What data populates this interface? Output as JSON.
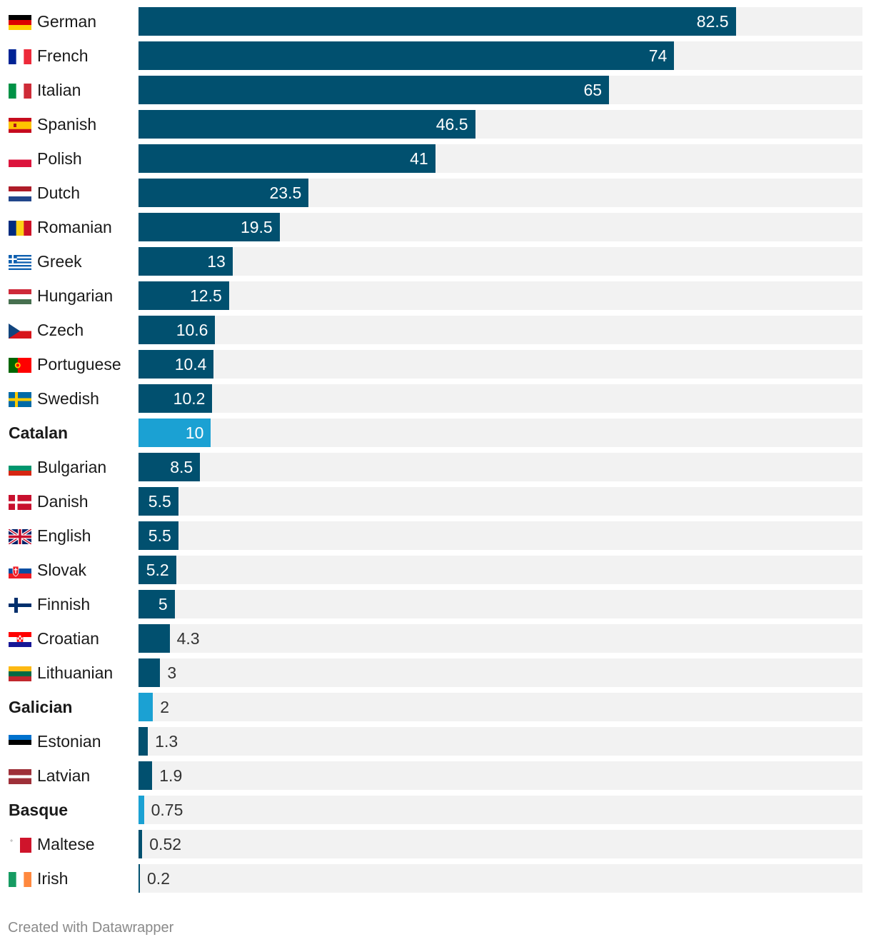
{
  "chart_data": {
    "type": "bar",
    "orientation": "horizontal",
    "xlim": [
      0,
      100
    ],
    "grid": false,
    "colors": {
      "default": "#01506f",
      "highlight": "#1ba1d3",
      "track": "#f2f2f2"
    },
    "rows": [
      {
        "label": "German",
        "value": 82.5,
        "display": "82.5",
        "flag": "de"
      },
      {
        "label": "French",
        "value": 74,
        "display": "74",
        "flag": "fr"
      },
      {
        "label": "Italian",
        "value": 65,
        "display": "65",
        "flag": "it"
      },
      {
        "label": "Spanish",
        "value": 46.5,
        "display": "46.5",
        "flag": "es"
      },
      {
        "label": "Polish",
        "value": 41,
        "display": "41",
        "flag": "pl"
      },
      {
        "label": "Dutch",
        "value": 23.5,
        "display": "23.5",
        "flag": "nl"
      },
      {
        "label": "Romanian",
        "value": 19.5,
        "display": "19.5",
        "flag": "ro"
      },
      {
        "label": "Greek",
        "value": 13,
        "display": "13",
        "flag": "gr"
      },
      {
        "label": "Hungarian",
        "value": 12.5,
        "display": "12.5",
        "flag": "hu"
      },
      {
        "label": "Czech",
        "value": 10.6,
        "display": "10.6",
        "flag": "cz"
      },
      {
        "label": "Portuguese",
        "value": 10.4,
        "display": "10.4",
        "flag": "pt"
      },
      {
        "label": "Swedish",
        "value": 10.2,
        "display": "10.2",
        "flag": "se"
      },
      {
        "label": "Catalan",
        "value": 10,
        "display": "10",
        "highlight": true
      },
      {
        "label": "Bulgarian",
        "value": 8.5,
        "display": "8.5",
        "flag": "bg"
      },
      {
        "label": "Danish",
        "value": 5.5,
        "display": "5.5",
        "flag": "dk"
      },
      {
        "label": "English",
        "value": 5.5,
        "display": "5.5",
        "flag": "gb"
      },
      {
        "label": "Slovak",
        "value": 5.2,
        "display": "5.2",
        "flag": "sk"
      },
      {
        "label": "Finnish",
        "value": 5,
        "display": "5",
        "flag": "fi"
      },
      {
        "label": "Croatian",
        "value": 4.3,
        "display": "4.3",
        "flag": "hr"
      },
      {
        "label": "Lithuanian",
        "value": 3,
        "display": "3",
        "flag": "lt"
      },
      {
        "label": "Galician",
        "value": 2,
        "display": "2",
        "highlight": true
      },
      {
        "label": "Estonian",
        "value": 1.3,
        "display": "1.3",
        "flag": "ee"
      },
      {
        "label": "Latvian",
        "value": 1.9,
        "display": "1.9",
        "flag": "lv"
      },
      {
        "label": "Basque",
        "value": 0.75,
        "display": "0.75",
        "highlight": true
      },
      {
        "label": "Maltese",
        "value": 0.52,
        "display": "0.52",
        "flag": "mt"
      },
      {
        "label": "Irish",
        "value": 0.2,
        "display": "0.2",
        "flag": "ie"
      }
    ]
  },
  "footer": {
    "credit": "Created with Datawrapper"
  }
}
